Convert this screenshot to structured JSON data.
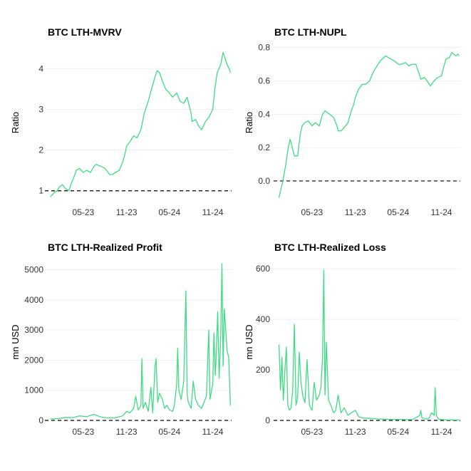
{
  "colors": {
    "series": "#3ddc84",
    "grid": "#ebebeb",
    "reference_line": "#000000"
  },
  "chart_data": [
    {
      "type": "line",
      "title": "BTC LTH-MVRV",
      "ylabel": "Ratio",
      "xlabel": "",
      "x_tick_labels": [
        "05-23",
        "11-23",
        "05-24",
        "11-24"
      ],
      "y_ticks": [
        1,
        2,
        3,
        4
      ],
      "ylim": [
        0.75,
        4.6
      ],
      "xlim": [
        "2022-12-01",
        "2025-01-20"
      ],
      "reference_line": 1,
      "grid": true,
      "legend": "none",
      "series": [
        {
          "x": [
            "2022-12-12",
            "2022-12-28",
            "2023-01-10",
            "2023-01-20",
            "2023-02-01",
            "2023-02-15",
            "2023-03-01",
            "2023-03-12",
            "2023-03-20",
            "2023-04-01",
            "2023-04-15",
            "2023-05-01",
            "2023-05-15",
            "2023-06-01",
            "2023-06-15",
            "2023-06-25",
            "2023-07-05",
            "2023-07-15",
            "2023-08-01",
            "2023-08-15",
            "2023-08-20",
            "2023-09-01",
            "2023-09-15",
            "2023-10-01",
            "2023-10-15",
            "2023-10-25",
            "2023-11-01",
            "2023-11-15",
            "2023-12-01",
            "2023-12-15",
            "2024-01-01",
            "2024-01-15",
            "2024-02-01",
            "2024-02-15",
            "2024-03-01",
            "2024-03-10",
            "2024-03-20",
            "2024-04-01",
            "2024-04-15",
            "2024-05-01",
            "2024-05-15",
            "2024-06-01",
            "2024-06-15",
            "2024-07-01",
            "2024-07-15",
            "2024-08-01",
            "2024-08-05",
            "2024-08-20",
            "2024-09-01",
            "2024-09-15",
            "2024-10-01",
            "2024-10-15",
            "2024-11-01",
            "2024-11-10",
            "2024-11-20",
            "2024-12-05",
            "2024-12-15",
            "2025-01-01",
            "2025-01-10",
            "2025-01-15"
          ],
          "y": [
            0.85,
            0.95,
            1.0,
            1.1,
            1.15,
            1.05,
            1.0,
            1.2,
            1.3,
            1.5,
            1.55,
            1.45,
            1.5,
            1.45,
            1.6,
            1.65,
            1.62,
            1.6,
            1.55,
            1.45,
            1.4,
            1.4,
            1.45,
            1.5,
            1.7,
            1.9,
            2.1,
            2.2,
            2.35,
            2.3,
            2.5,
            2.9,
            3.2,
            3.5,
            3.8,
            3.95,
            3.9,
            3.7,
            3.5,
            3.4,
            3.3,
            3.4,
            3.2,
            3.15,
            3.3,
            2.9,
            2.7,
            2.75,
            2.6,
            2.5,
            2.7,
            2.8,
            3.0,
            3.5,
            3.9,
            4.1,
            4.4,
            4.1,
            4.0,
            3.9
          ]
        }
      ]
    },
    {
      "type": "line",
      "title": "BTC LTH-NUPL",
      "ylabel": "Ratio",
      "xlabel": "",
      "x_tick_labels": [
        "05-23",
        "11-23",
        "05-24",
        "11-24"
      ],
      "y_ticks": [
        0.0,
        0.2,
        0.4,
        0.6,
        0.8
      ],
      "y_tick_labels": [
        "0.0",
        "0.2",
        "0.4",
        "0.6",
        "0.8"
      ],
      "ylim": [
        -0.12,
        0.82
      ],
      "xlim": [
        "2022-12-01",
        "2025-01-20"
      ],
      "reference_line": 0,
      "grid": true,
      "legend": "none",
      "series": [
        {
          "x": [
            "2022-12-12",
            "2022-12-28",
            "2023-01-10",
            "2023-01-20",
            "2023-01-28",
            "2023-02-15",
            "2023-03-01",
            "2023-03-12",
            "2023-03-20",
            "2023-04-01",
            "2023-04-15",
            "2023-05-01",
            "2023-05-15",
            "2023-06-01",
            "2023-06-15",
            "2023-06-25",
            "2023-07-05",
            "2023-07-15",
            "2023-08-01",
            "2023-08-15",
            "2023-08-20",
            "2023-09-01",
            "2023-09-15",
            "2023-10-01",
            "2023-10-15",
            "2023-10-25",
            "2023-11-01",
            "2023-11-15",
            "2023-12-01",
            "2023-12-15",
            "2024-01-01",
            "2024-01-15",
            "2024-02-01",
            "2024-02-15",
            "2024-03-01",
            "2024-03-10",
            "2024-03-20",
            "2024-04-01",
            "2024-04-15",
            "2024-05-01",
            "2024-05-15",
            "2024-06-01",
            "2024-06-15",
            "2024-07-01",
            "2024-07-15",
            "2024-08-01",
            "2024-08-05",
            "2024-08-20",
            "2024-09-01",
            "2024-09-15",
            "2024-10-01",
            "2024-10-15",
            "2024-11-01",
            "2024-11-10",
            "2024-11-20",
            "2024-12-05",
            "2024-12-15",
            "2025-01-01",
            "2025-01-10",
            "2025-01-15"
          ],
          "y": [
            -0.1,
            0.0,
            0.1,
            0.2,
            0.25,
            0.15,
            0.15,
            0.28,
            0.33,
            0.35,
            0.36,
            0.33,
            0.35,
            0.33,
            0.4,
            0.42,
            0.41,
            0.4,
            0.38,
            0.33,
            0.3,
            0.3,
            0.32,
            0.35,
            0.42,
            0.46,
            0.5,
            0.55,
            0.58,
            0.58,
            0.6,
            0.65,
            0.69,
            0.72,
            0.74,
            0.75,
            0.74,
            0.73,
            0.72,
            0.7,
            0.7,
            0.71,
            0.69,
            0.7,
            0.7,
            0.63,
            0.61,
            0.62,
            0.6,
            0.57,
            0.6,
            0.62,
            0.63,
            0.68,
            0.73,
            0.74,
            0.77,
            0.75,
            0.76,
            0.75
          ]
        }
      ]
    },
    {
      "type": "line",
      "title": "BTC LTH-Realized Profit",
      "ylabel": "mn USD",
      "xlabel": "",
      "x_tick_labels": [
        "05-23",
        "11-23",
        "05-24",
        "11-24"
      ],
      "y_ticks": [
        0,
        1000,
        2000,
        3000,
        4000,
        5000
      ],
      "ylim": [
        0,
        5200
      ],
      "xlim": [
        "2022-12-01",
        "2025-01-20"
      ],
      "reference_line": 0,
      "grid": true,
      "legend": "none",
      "series": [
        {
          "x": [
            "2022-12-12",
            "2023-01-15",
            "2023-02-15",
            "2023-03-15",
            "2023-04-15",
            "2023-05-15",
            "2023-06-15",
            "2023-07-15",
            "2023-08-15",
            "2023-09-15",
            "2023-10-15",
            "2023-11-01",
            "2023-11-15",
            "2023-12-01",
            "2023-12-10",
            "2023-12-20",
            "2024-01-01",
            "2024-01-05",
            "2024-01-10",
            "2024-01-20",
            "2024-02-01",
            "2024-02-12",
            "2024-02-20",
            "2024-03-01",
            "2024-03-05",
            "2024-03-12",
            "2024-03-20",
            "2024-04-01",
            "2024-04-10",
            "2024-04-20",
            "2024-05-01",
            "2024-05-15",
            "2024-05-22",
            "2024-06-01",
            "2024-06-05",
            "2024-06-10",
            "2024-06-20",
            "2024-07-01",
            "2024-07-10",
            "2024-07-15",
            "2024-07-20",
            "2024-08-01",
            "2024-08-10",
            "2024-08-20",
            "2024-09-01",
            "2024-09-15",
            "2024-09-25",
            "2024-10-05",
            "2024-10-15",
            "2024-10-20",
            "2024-11-01",
            "2024-11-06",
            "2024-11-12",
            "2024-11-15",
            "2024-11-22",
            "2024-11-28",
            "2024-12-05",
            "2024-12-10",
            "2024-12-15",
            "2024-12-20",
            "2025-01-01",
            "2025-01-08",
            "2025-01-15"
          ],
          "y": [
            50,
            60,
            100,
            90,
            150,
            120,
            200,
            110,
            80,
            90,
            150,
            300,
            250,
            400,
            800,
            350,
            500,
            2050,
            400,
            600,
            300,
            1100,
            250,
            1800,
            2050,
            600,
            900,
            700,
            400,
            500,
            350,
            300,
            500,
            1200,
            2400,
            1000,
            700,
            1300,
            4300,
            900,
            600,
            400,
            1300,
            700,
            500,
            400,
            600,
            800,
            3000,
            700,
            1200,
            2900,
            1500,
            2000,
            3600,
            1400,
            2800,
            5200,
            1800,
            3700,
            2300,
            2100,
            500
          ]
        }
      ]
    },
    {
      "type": "line",
      "title": "BTC LTH-Realized Loss",
      "ylabel": "mn USD",
      "xlabel": "",
      "x_tick_labels": [
        "05-23",
        "11-23",
        "05-24",
        "11-24"
      ],
      "y_ticks": [
        0,
        200,
        400,
        600
      ],
      "ylim": [
        0,
        620
      ],
      "xlim": [
        "2022-12-01",
        "2025-01-20"
      ],
      "reference_line": 0,
      "grid": true,
      "legend": "none",
      "series": [
        {
          "x": [
            "2022-12-12",
            "2022-12-18",
            "2022-12-24",
            "2022-12-30",
            "2023-01-06",
            "2023-01-12",
            "2023-01-18",
            "2023-01-25",
            "2023-02-01",
            "2023-02-08",
            "2023-02-15",
            "2023-02-22",
            "2023-03-01",
            "2023-03-08",
            "2023-03-15",
            "2023-03-22",
            "2023-04-01",
            "2023-04-10",
            "2023-04-20",
            "2023-05-01",
            "2023-05-10",
            "2023-05-20",
            "2023-06-01",
            "2023-06-08",
            "2023-06-15",
            "2023-06-20",
            "2023-06-25",
            "2023-07-01",
            "2023-07-10",
            "2023-07-20",
            "2023-08-01",
            "2023-08-10",
            "2023-08-20",
            "2023-09-01",
            "2023-09-15",
            "2023-10-01",
            "2023-10-15",
            "2023-11-01",
            "2023-11-15",
            "2023-12-01",
            "2024-01-01",
            "2024-02-01",
            "2024-03-01",
            "2024-04-01",
            "2024-05-01",
            "2024-06-01",
            "2024-07-01",
            "2024-08-01",
            "2024-08-05",
            "2024-08-10",
            "2024-09-01",
            "2024-09-10",
            "2024-09-20",
            "2024-10-01",
            "2024-10-05",
            "2024-10-10",
            "2024-10-20",
            "2024-11-01",
            "2024-12-01",
            "2025-01-01",
            "2025-01-15"
          ],
          "y": [
            300,
            120,
            250,
            80,
            200,
            290,
            60,
            40,
            50,
            120,
            380,
            60,
            90,
            270,
            150,
            100,
            70,
            240,
            60,
            40,
            150,
            80,
            100,
            130,
            250,
            595,
            100,
            310,
            80,
            60,
            30,
            40,
            100,
            30,
            50,
            20,
            30,
            40,
            15,
            10,
            8,
            6,
            5,
            4,
            4,
            3,
            3,
            20,
            40,
            10,
            5,
            10,
            30,
            20,
            130,
            20,
            5,
            3,
            2,
            2,
            2
          ]
        }
      ]
    }
  ]
}
